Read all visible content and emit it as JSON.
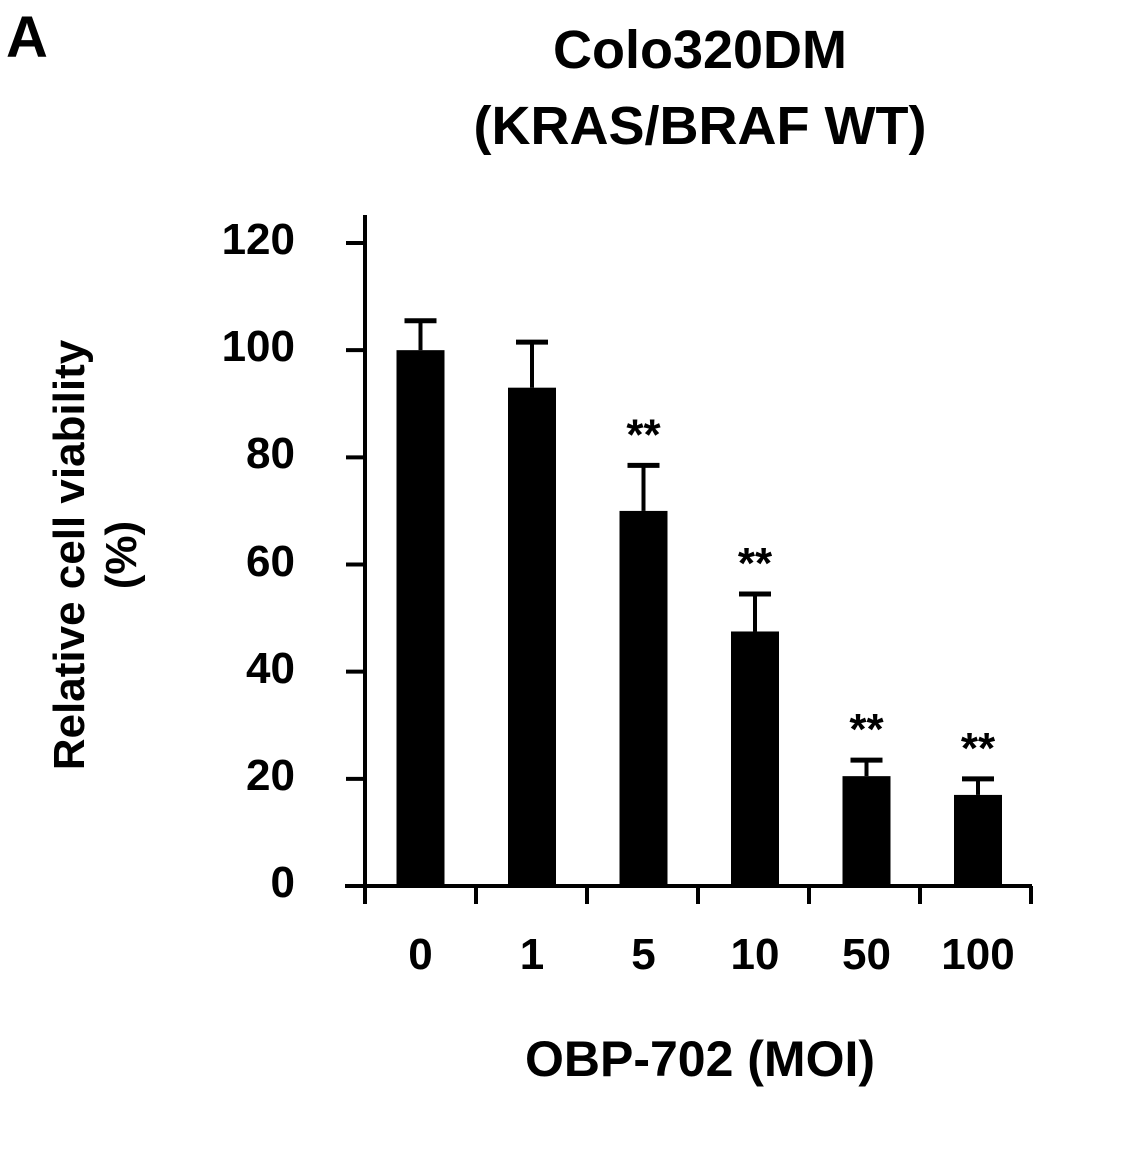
{
  "panel_label": "A",
  "chart_data": {
    "type": "bar",
    "title": "Colo320DM",
    "subtitle": "(KRAS/BRAF WT)",
    "xlabel": "OBP-702 (MOI)",
    "ylabel": "Relative cell viability (%)",
    "categories": [
      "0",
      "1",
      "5",
      "10",
      "50",
      "100"
    ],
    "values": [
      100,
      93,
      70,
      47.5,
      20.5,
      17
    ],
    "error_upper": [
      5.5,
      8.5,
      8.5,
      7,
      3,
      3
    ],
    "significance": [
      "",
      "",
      "**",
      "**",
      "**",
      "**"
    ],
    "ylim": [
      0,
      120
    ],
    "yticks": [
      0,
      20,
      40,
      60,
      80,
      100,
      120
    ],
    "grid": false,
    "bar_color": "#000000"
  },
  "ylabel_lines": [
    "Relative cell viability",
    "(%)"
  ]
}
